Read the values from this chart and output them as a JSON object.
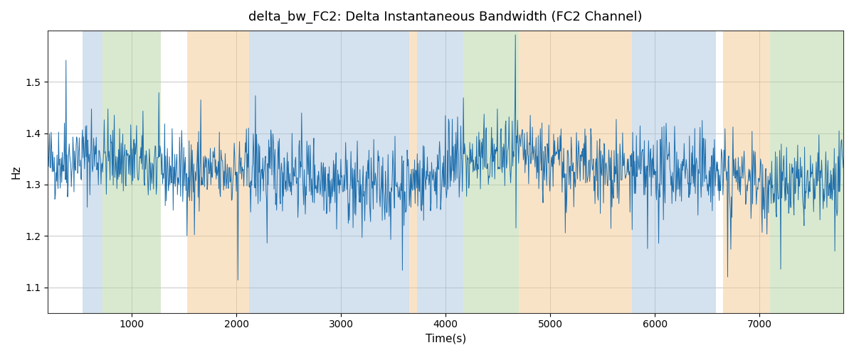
{
  "title": "delta_bw_FC2: Delta Instantaneous Bandwidth (FC2 Channel)",
  "xlabel": "Time(s)",
  "ylabel": "Hz",
  "xlim": [
    200,
    7800
  ],
  "ylim": [
    1.05,
    1.6
  ],
  "yticks": [
    1.1,
    1.2,
    1.3,
    1.4,
    1.5
  ],
  "line_color": "#1f6fad",
  "line_width": 0.7,
  "bg_color": "#ffffff",
  "grid_color": "#b0b0b0",
  "bands": [
    {
      "xmin": 530,
      "xmax": 720,
      "color": "#aac4de",
      "alpha": 0.5
    },
    {
      "xmin": 720,
      "xmax": 1280,
      "color": "#b5d5a0",
      "alpha": 0.5
    },
    {
      "xmin": 1530,
      "xmax": 2120,
      "color": "#f5c990",
      "alpha": 0.5
    },
    {
      "xmin": 2120,
      "xmax": 3650,
      "color": "#aac4de",
      "alpha": 0.5
    },
    {
      "xmin": 3650,
      "xmax": 3730,
      "color": "#f5c990",
      "alpha": 0.5
    },
    {
      "xmin": 3730,
      "xmax": 4080,
      "color": "#aac4de",
      "alpha": 0.5
    },
    {
      "xmin": 4080,
      "xmax": 4170,
      "color": "#aac4de",
      "alpha": 0.5
    },
    {
      "xmin": 4170,
      "xmax": 4700,
      "color": "#b5d5a0",
      "alpha": 0.5
    },
    {
      "xmin": 4700,
      "xmax": 5780,
      "color": "#f5c990",
      "alpha": 0.5
    },
    {
      "xmin": 5780,
      "xmax": 6580,
      "color": "#aac4de",
      "alpha": 0.5
    },
    {
      "xmin": 6650,
      "xmax": 7100,
      "color": "#f5c990",
      "alpha": 0.5
    },
    {
      "xmin": 7100,
      "xmax": 7800,
      "color": "#b5d5a0",
      "alpha": 0.5
    }
  ],
  "n_points": 1500,
  "seed": 42,
  "mean": 1.325,
  "noise_scale": 0.038,
  "spike_prob": 0.025,
  "spike_scale": 0.1,
  "slow_amp1": 0.02,
  "slow_period1": 4000,
  "slow_amp2": 0.015,
  "slow_period2": 2000
}
